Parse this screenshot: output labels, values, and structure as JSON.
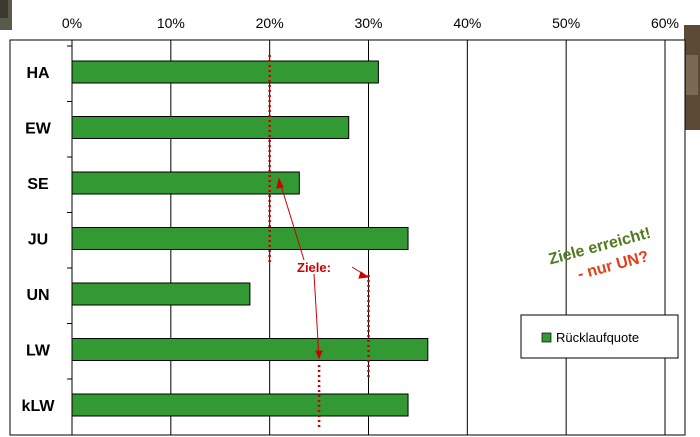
{
  "chart_data": {
    "type": "bar",
    "orientation": "horizontal",
    "categories": [
      "HA",
      "EW",
      "SE",
      "JU",
      "UN",
      "LW",
      "kLW"
    ],
    "series": [
      {
        "name": "Rücklaufquote",
        "values": [
          31,
          28,
          23,
          34,
          18,
          36,
          34
        ],
        "color": "#339933"
      }
    ],
    "xlim": [
      0,
      60
    ],
    "x_ticks": [
      "0%",
      "10%",
      "20%",
      "30%",
      "40%",
      "50%",
      "60%"
    ],
    "x_tick_values": [
      0,
      10,
      20,
      30,
      40,
      50,
      60
    ],
    "x_axis_position": "top",
    "grid": true,
    "legend_position": "right",
    "target_lines": [
      {
        "value": 20,
        "color": "#cc0000"
      },
      {
        "value": 30,
        "color": "#cc0000"
      },
      {
        "value": 25,
        "color": "#cc0000"
      }
    ],
    "annotations": {
      "targets_label": "Ziele:",
      "reached_line1": "Ziele erreicht!",
      "reached_line2": "- nur UN?"
    },
    "colors": {
      "bar": "#339933",
      "target": "#cc0000",
      "reached_text": "#4e7a1e",
      "question_text": "#e0401a"
    }
  }
}
